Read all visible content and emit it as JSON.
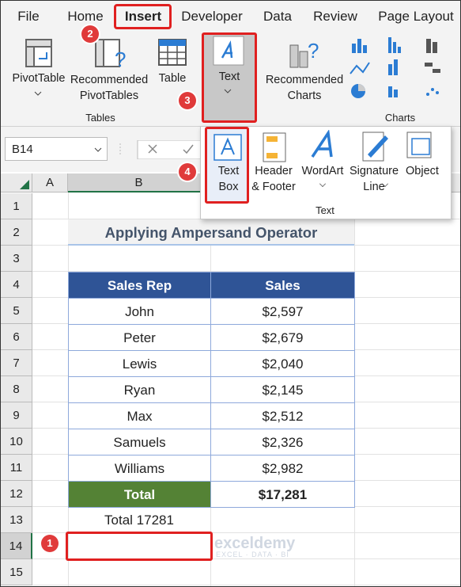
{
  "tabs": [
    "File",
    "Home",
    "Insert",
    "Developer",
    "Data",
    "Review",
    "Page Layout"
  ],
  "ribbon": {
    "pivot_table": "PivotTable",
    "recommended_pivot": [
      "Recommended",
      "PivotTables"
    ],
    "table": "Table",
    "text": "Text",
    "recommended_charts": [
      "Recommended",
      "Charts"
    ],
    "tables_group": "Tables",
    "charts_group": "Charts"
  },
  "steps": [
    1,
    2,
    3,
    4
  ],
  "name_box": "B14",
  "text_menu": {
    "items": [
      [
        "Text",
        "Box"
      ],
      [
        "Header",
        "& Footer"
      ],
      [
        "WordArt"
      ],
      [
        "Signature",
        "Line"
      ],
      [
        "Object"
      ]
    ],
    "group": "Text"
  },
  "columns": [
    "A",
    "B"
  ],
  "rows": [
    1,
    2,
    3,
    4,
    5,
    6,
    7,
    8,
    9,
    10,
    11,
    12,
    13,
    14,
    15
  ],
  "sheet": {
    "title": "Applying Ampersand Operator",
    "header": [
      "Sales Rep",
      "Sales"
    ],
    "rows": [
      [
        "John",
        "$2,597"
      ],
      [
        "Peter",
        "$2,679"
      ],
      [
        "Lewis",
        "$2,040"
      ],
      [
        "Ryan",
        "$2,145"
      ],
      [
        "Max",
        "$2,512"
      ],
      [
        "Samuels",
        "$2,326"
      ],
      [
        "Williams",
        "$2,982"
      ]
    ],
    "total": [
      "Total",
      "$17,281"
    ],
    "note": "Total 17281"
  },
  "watermark": [
    "exceldemy",
    "EXCEL · DATA · BI"
  ]
}
